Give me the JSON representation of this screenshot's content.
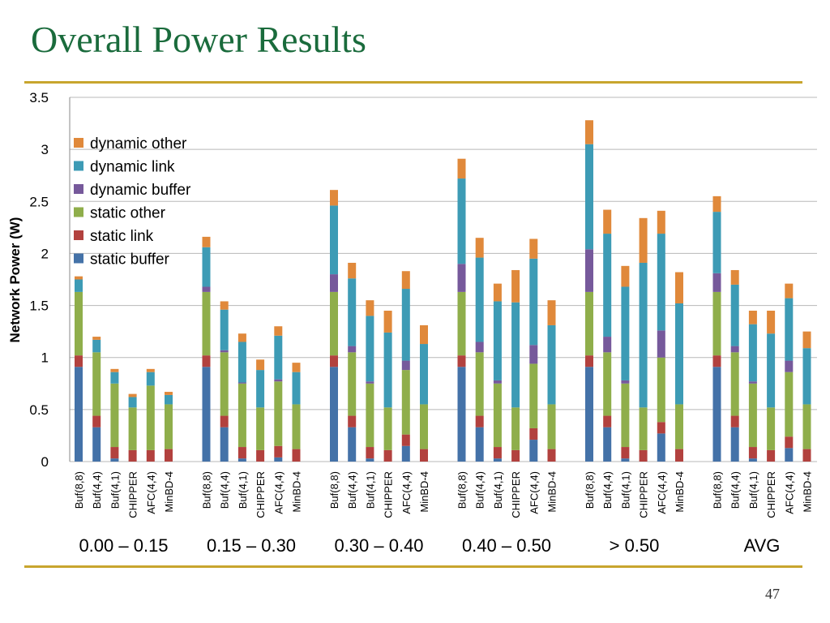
{
  "slide": {
    "title": "Overall Power Results",
    "page_number": "47"
  },
  "colors": {
    "static buffer": "#4472a8",
    "static link": "#b2413e",
    "static other": "#8fae4b",
    "dynamic buffer": "#76599b",
    "dynamic link": "#3d9bb5",
    "dynamic other": "#e0893b"
  },
  "chart_data": {
    "type": "bar",
    "stacked": true,
    "ylabel": "Network Power (W)",
    "xlabel": "",
    "ylim": [
      0,
      3.5
    ],
    "yticks": [
      "0",
      "0.5",
      "1",
      "1.5",
      "2",
      "2.5",
      "3",
      "3.5"
    ],
    "grid": true,
    "legend_position": "top-left",
    "legend_order": [
      "dynamic other",
      "dynamic link",
      "dynamic buffer",
      "static other",
      "static link",
      "static buffer"
    ],
    "series_names": [
      "static buffer",
      "static link",
      "static other",
      "dynamic buffer",
      "dynamic link",
      "dynamic other"
    ],
    "groups": [
      {
        "label": "0.00 – 0.15",
        "bars": [
          {
            "name": "Buf(8,8)",
            "values": [
              0.91,
              0.11,
              0.61,
              0.0,
              0.12,
              0.03
            ]
          },
          {
            "name": "Buf(4,4)",
            "values": [
              0.33,
              0.11,
              0.61,
              0.0,
              0.12,
              0.03
            ]
          },
          {
            "name": "Buf(4,1)",
            "values": [
              0.03,
              0.11,
              0.61,
              0.0,
              0.11,
              0.03
            ]
          },
          {
            "name": "CHIPPER",
            "values": [
              0.0,
              0.11,
              0.41,
              0.0,
              0.1,
              0.03
            ]
          },
          {
            "name": "AFC(4,4)",
            "values": [
              0.0,
              0.11,
              0.62,
              0.0,
              0.13,
              0.03
            ]
          },
          {
            "name": "MinBD-4",
            "values": [
              0.0,
              0.12,
              0.43,
              0.0,
              0.09,
              0.03
            ]
          }
        ]
      },
      {
        "label": "0.15 – 0.30",
        "bars": [
          {
            "name": "Buf(8,8)",
            "values": [
              0.91,
              0.11,
              0.61,
              0.05,
              0.38,
              0.1
            ]
          },
          {
            "name": "Buf(4,4)",
            "values": [
              0.33,
              0.11,
              0.61,
              0.02,
              0.39,
              0.08
            ]
          },
          {
            "name": "Buf(4,1)",
            "values": [
              0.03,
              0.11,
              0.61,
              0.01,
              0.39,
              0.08
            ]
          },
          {
            "name": "CHIPPER",
            "values": [
              0.0,
              0.11,
              0.41,
              0.0,
              0.36,
              0.1
            ]
          },
          {
            "name": "AFC(4,4)",
            "values": [
              0.04,
              0.11,
              0.62,
              0.02,
              0.42,
              0.09
            ]
          },
          {
            "name": "MinBD-4",
            "values": [
              0.0,
              0.12,
              0.43,
              0.0,
              0.31,
              0.09
            ]
          }
        ]
      },
      {
        "label": "0.30 – 0.40",
        "bars": [
          {
            "name": "Buf(8,8)",
            "values": [
              0.91,
              0.11,
              0.61,
              0.17,
              0.66,
              0.15
            ]
          },
          {
            "name": "Buf(4,4)",
            "values": [
              0.33,
              0.11,
              0.61,
              0.06,
              0.65,
              0.15
            ]
          },
          {
            "name": "Buf(4,1)",
            "values": [
              0.03,
              0.11,
              0.61,
              0.02,
              0.63,
              0.15
            ]
          },
          {
            "name": "CHIPPER",
            "values": [
              0.0,
              0.11,
              0.41,
              0.0,
              0.72,
              0.21
            ]
          },
          {
            "name": "AFC(4,4)",
            "values": [
              0.15,
              0.11,
              0.62,
              0.09,
              0.69,
              0.17
            ]
          },
          {
            "name": "MinBD-4",
            "values": [
              0.0,
              0.12,
              0.43,
              0.0,
              0.58,
              0.18
            ]
          }
        ]
      },
      {
        "label": "0.40 – 0.50",
        "bars": [
          {
            "name": "Buf(8,8)",
            "values": [
              0.91,
              0.11,
              0.61,
              0.27,
              0.82,
              0.19
            ]
          },
          {
            "name": "Buf(4,4)",
            "values": [
              0.33,
              0.11,
              0.61,
              0.1,
              0.81,
              0.19
            ]
          },
          {
            "name": "Buf(4,1)",
            "values": [
              0.03,
              0.11,
              0.61,
              0.03,
              0.76,
              0.17
            ]
          },
          {
            "name": "CHIPPER",
            "values": [
              0.0,
              0.11,
              0.41,
              0.0,
              1.01,
              0.31
            ]
          },
          {
            "name": "AFC(4,4)",
            "values": [
              0.21,
              0.11,
              0.62,
              0.18,
              0.83,
              0.19
            ]
          },
          {
            "name": "MinBD-4",
            "values": [
              0.0,
              0.12,
              0.43,
              0.0,
              0.76,
              0.24
            ]
          }
        ]
      },
      {
        "label": "> 0.50",
        "bars": [
          {
            "name": "Buf(8,8)",
            "values": [
              0.91,
              0.11,
              0.61,
              0.41,
              1.01,
              0.23
            ]
          },
          {
            "name": "Buf(4,4)",
            "values": [
              0.33,
              0.11,
              0.61,
              0.15,
              0.99,
              0.23
            ]
          },
          {
            "name": "Buf(4,1)",
            "values": [
              0.03,
              0.11,
              0.61,
              0.03,
              0.9,
              0.2
            ]
          },
          {
            "name": "CHIPPER",
            "values": [
              0.0,
              0.11,
              0.41,
              0.0,
              1.39,
              0.43
            ]
          },
          {
            "name": "AFC(4,4)",
            "values": [
              0.27,
              0.11,
              0.62,
              0.26,
              0.93,
              0.22
            ]
          },
          {
            "name": "MinBD-4",
            "values": [
              0.0,
              0.12,
              0.43,
              0.0,
              0.97,
              0.3
            ]
          }
        ]
      },
      {
        "label": "AVG",
        "bars": [
          {
            "name": "Buf(8,8)",
            "values": [
              0.91,
              0.11,
              0.61,
              0.18,
              0.59,
              0.15
            ]
          },
          {
            "name": "Buf(4,4)",
            "values": [
              0.33,
              0.11,
              0.61,
              0.06,
              0.59,
              0.14
            ]
          },
          {
            "name": "Buf(4,1)",
            "values": [
              0.03,
              0.11,
              0.61,
              0.02,
              0.55,
              0.13
            ]
          },
          {
            "name": "CHIPPER",
            "values": [
              0.0,
              0.11,
              0.41,
              0.0,
              0.71,
              0.22
            ]
          },
          {
            "name": "AFC(4,4)",
            "values": [
              0.13,
              0.11,
              0.62,
              0.11,
              0.6,
              0.14
            ]
          },
          {
            "name": "MinBD-4",
            "values": [
              0.0,
              0.12,
              0.43,
              0.0,
              0.54,
              0.16
            ]
          }
        ]
      }
    ]
  }
}
